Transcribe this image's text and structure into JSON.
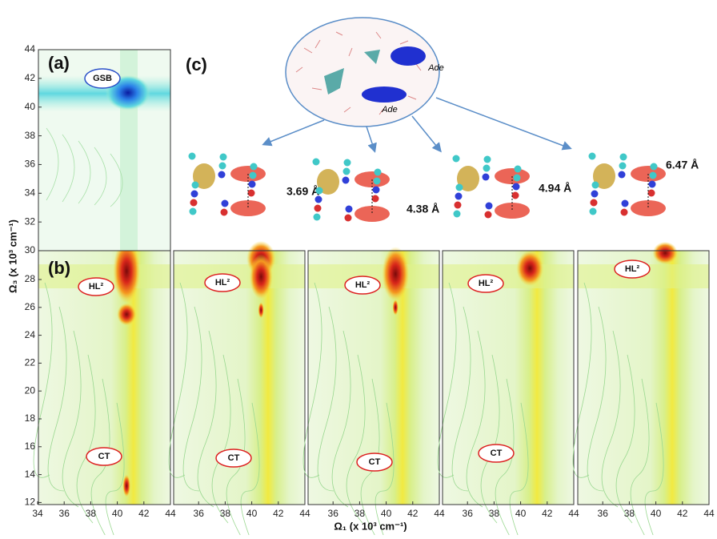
{
  "figure": {
    "panel_labels": [
      "(a)",
      "(b)",
      "(c)"
    ],
    "y_axis_label": "Ω₃ (x 10³ cm⁻¹)",
    "x_axis_label": "Ω₁ (x 10³ cm⁻¹)",
    "a_yticks": [
      30,
      32,
      34,
      36,
      38,
      40,
      42,
      44
    ],
    "b_yticks": [
      12,
      14,
      16,
      18,
      20,
      22,
      24,
      26,
      28
    ],
    "first_xticks": [
      34,
      36,
      38,
      40,
      42,
      44
    ],
    "xticks": [
      36,
      38,
      40,
      42,
      44
    ],
    "annotations": {
      "gsb": "GSB",
      "hl2": "HL²",
      "ct": "CT",
      "ade": "Ade"
    },
    "distances": [
      "3.69 Å",
      "4.38 Å",
      "4.94 Å",
      "6.47 Å"
    ]
  }
}
